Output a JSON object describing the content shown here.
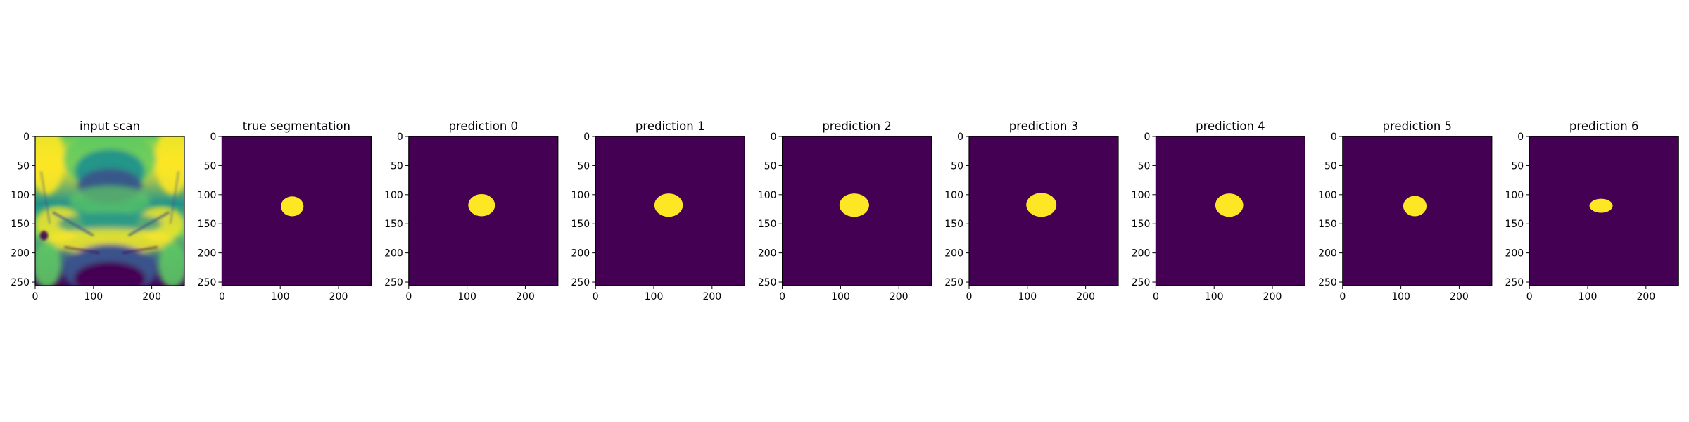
{
  "colors": {
    "background_mask": "#440154",
    "foreground_mask": "#fde725",
    "scan_colormap": [
      "#440154",
      "#3b528b",
      "#21918c",
      "#5ec962",
      "#fde725"
    ]
  },
  "chart_data": [
    {
      "type": "heatmap",
      "title": "input scan",
      "colormap": "viridis",
      "xlim": [
        0,
        256
      ],
      "ylim": [
        256,
        0
      ],
      "xticks": [
        "0",
        "100",
        "200"
      ],
      "yticks": [
        "0",
        "50",
        "100",
        "150",
        "200",
        "250"
      ]
    },
    {
      "type": "heatmap",
      "title": "true segmentation",
      "colormap": "viridis",
      "xlim": [
        0,
        256
      ],
      "ylim": [
        256,
        0
      ],
      "xticks": [
        "0",
        "100",
        "200"
      ],
      "yticks": [
        "0",
        "50",
        "100",
        "150",
        "200",
        "250"
      ],
      "mask_region": {
        "x_range": [
          101,
          140
        ],
        "y_range": [
          103,
          137
        ]
      }
    },
    {
      "type": "heatmap",
      "title": "prediction 0",
      "colormap": "viridis",
      "xlim": [
        0,
        256
      ],
      "ylim": [
        256,
        0
      ],
      "xticks": [
        "0",
        "100",
        "200"
      ],
      "yticks": [
        "0",
        "50",
        "100",
        "150",
        "200",
        "250"
      ],
      "mask_region": {
        "x_range": [
          102,
          148
        ],
        "y_range": [
          99,
          137
        ]
      }
    },
    {
      "type": "heatmap",
      "title": "prediction 1",
      "colormap": "viridis",
      "xlim": [
        0,
        256
      ],
      "ylim": [
        256,
        0
      ],
      "xticks": [
        "0",
        "100",
        "200"
      ],
      "yticks": [
        "0",
        "50",
        "100",
        "150",
        "200",
        "250"
      ],
      "mask_region": {
        "x_range": [
          101,
          150
        ],
        "y_range": [
          98,
          138
        ]
      }
    },
    {
      "type": "heatmap",
      "title": "prediction 2",
      "colormap": "viridis",
      "xlim": [
        0,
        256
      ],
      "ylim": [
        256,
        0
      ],
      "xticks": [
        "0",
        "100",
        "200"
      ],
      "yticks": [
        "0",
        "50",
        "100",
        "150",
        "200",
        "250"
      ],
      "mask_region": {
        "x_range": [
          98,
          149
        ],
        "y_range": [
          98,
          138
        ]
      }
    },
    {
      "type": "heatmap",
      "title": "prediction 3",
      "colormap": "viridis",
      "xlim": [
        0,
        256
      ],
      "ylim": [
        256,
        0
      ],
      "xticks": [
        "0",
        "100",
        "200"
      ],
      "yticks": [
        "0",
        "50",
        "100",
        "150",
        "200",
        "250"
      ],
      "mask_region": {
        "x_range": [
          98,
          150
        ],
        "y_range": [
          97,
          138
        ]
      }
    },
    {
      "type": "heatmap",
      "title": "prediction 4",
      "colormap": "viridis",
      "xlim": [
        0,
        256
      ],
      "ylim": [
        256,
        0
      ],
      "xticks": [
        "0",
        "100",
        "200"
      ],
      "yticks": [
        "0",
        "50",
        "100",
        "150",
        "200",
        "250"
      ],
      "mask_region": {
        "x_range": [
          102,
          150
        ],
        "y_range": [
          98,
          138
        ]
      }
    },
    {
      "type": "heatmap",
      "title": "prediction 5",
      "colormap": "viridis",
      "xlim": [
        0,
        256
      ],
      "ylim": [
        256,
        0
      ],
      "xticks": [
        "0",
        "100",
        "200"
      ],
      "yticks": [
        "0",
        "50",
        "100",
        "150",
        "200",
        "250"
      ],
      "mask_region": {
        "x_range": [
          104,
          144
        ],
        "y_range": [
          102,
          137
        ]
      }
    },
    {
      "type": "heatmap",
      "title": "prediction 6",
      "colormap": "viridis",
      "xlim": [
        0,
        256
      ],
      "ylim": [
        256,
        0
      ],
      "xticks": [
        "0",
        "100",
        "200"
      ],
      "yticks": [
        "0",
        "50",
        "100",
        "150",
        "200",
        "250"
      ],
      "mask_region": {
        "x_range": [
          103,
          143
        ],
        "y_range": [
          107,
          131
        ]
      }
    }
  ]
}
